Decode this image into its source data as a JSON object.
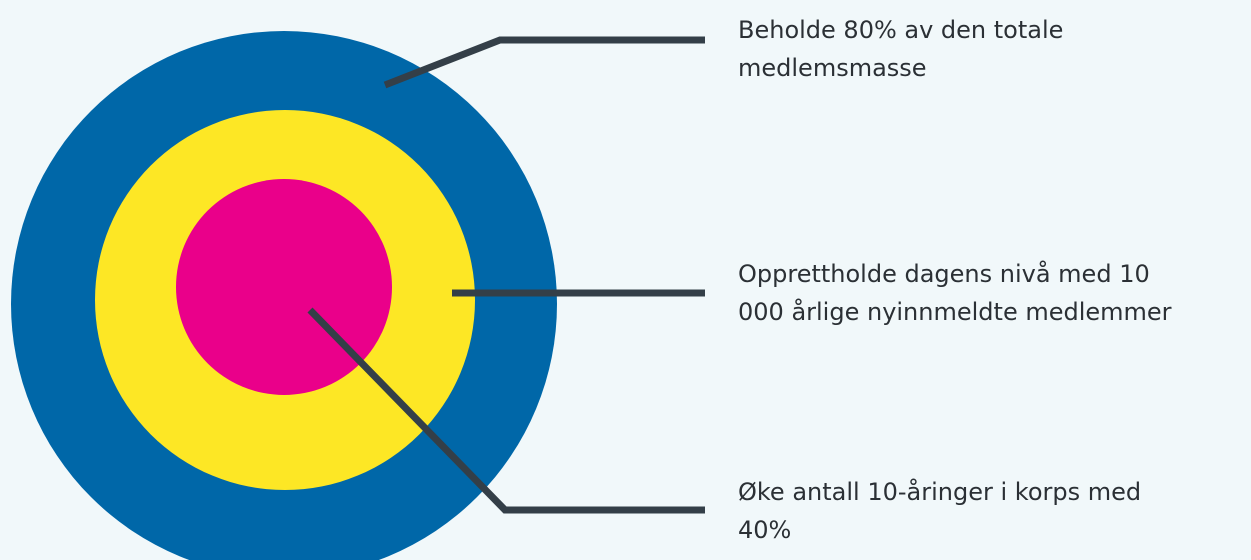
{
  "targets": [
    {
      "lines": [
        "Beholde 80% av den totale",
        "medlemsmasse"
      ]
    },
    {
      "lines": [
        "Opprettholde dagens nivå med 10",
        "000 årlige nyinnmeldte medlemmer"
      ]
    },
    {
      "lines": [
        "Øke antall 10-åringer i korps med",
        "40%"
      ]
    }
  ]
}
